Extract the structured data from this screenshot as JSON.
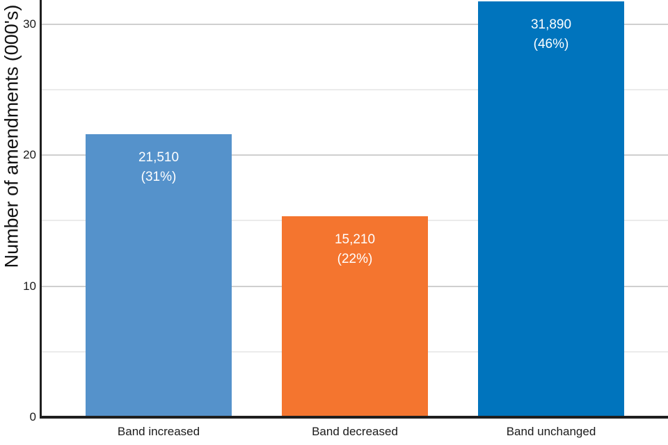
{
  "chart_data": {
    "type": "bar",
    "title": "",
    "categories": [
      "Band increased",
      "Band decreased",
      "Band unchanged"
    ],
    "values": [
      21510,
      15210,
      31890
    ],
    "values_thousands": [
      21.51,
      15.21,
      31.89
    ],
    "value_display": [
      "21,510",
      "15,210",
      "31,890"
    ],
    "percent_labels": [
      "(31%)",
      "(22%)",
      "(46%)"
    ],
    "bar_colors": [
      "#5592cb",
      "#f4752f",
      "#0074bd"
    ],
    "xlabel": "",
    "ylabel": "Number of amendments (000's)",
    "ylim": [
      0,
      31.9
    ],
    "yticks": [
      {
        "value": 0,
        "label": "0"
      },
      {
        "value": 10,
        "label": "10"
      },
      {
        "value": 20,
        "label": "20"
      },
      {
        "value": 30,
        "label": "30"
      }
    ],
    "major_gridlines": [
      10,
      20,
      30
    ],
    "minor_gridlines": [
      5,
      15,
      25
    ],
    "grid": "on",
    "legend": "none",
    "value_label_color": "#ffffff"
  },
  "colors": {
    "background": "#ffffff",
    "major_grid": "#cfcfcf",
    "minor_grid": "#ebebeb",
    "axis": "#1f1f1f",
    "tick_text": "#1a1a1a"
  }
}
